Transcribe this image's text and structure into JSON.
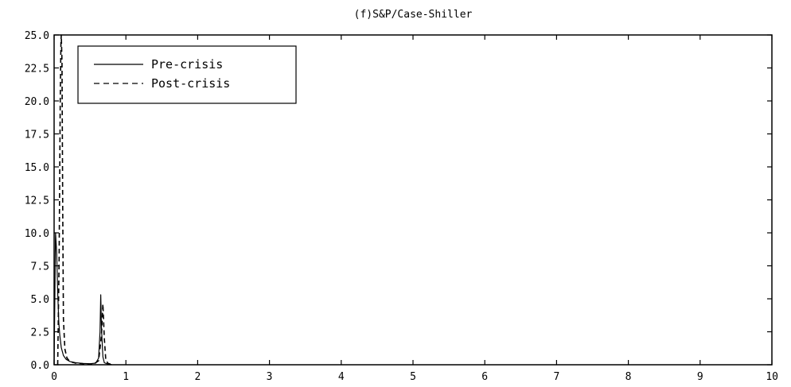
{
  "chart_data": {
    "type": "line",
    "title": "(f)S&P/Case-Shiller",
    "xlabel": "",
    "ylabel": "",
    "xlim": [
      0,
      10
    ],
    "ylim": [
      0,
      25
    ],
    "x_ticks": [
      "0",
      "1",
      "2",
      "3",
      "4",
      "5",
      "6",
      "7",
      "8",
      "9",
      "10"
    ],
    "y_ticks": [
      "0.0",
      "2.5",
      "5.0",
      "7.5",
      "10.0",
      "12.5",
      "15.0",
      "17.5",
      "20.0",
      "22.5",
      "25.0"
    ],
    "grid": false,
    "legend_position": "top-left",
    "series": [
      {
        "name": "Pre-crisis",
        "line_style": "solid",
        "color": "#000000",
        "x": [
          0.0,
          0.02,
          0.035,
          0.05,
          0.065,
          0.08,
          0.1,
          0.13,
          0.17,
          0.22,
          0.3,
          0.4,
          0.5,
          0.58,
          0.62,
          0.64,
          0.65,
          0.66,
          0.68,
          0.7,
          0.75,
          0.8
        ],
        "y": [
          0.0,
          10.0,
          8.5,
          5.5,
          3.2,
          2.2,
          1.3,
          0.7,
          0.4,
          0.25,
          0.15,
          0.1,
          0.08,
          0.12,
          0.5,
          2.5,
          5.3,
          2.8,
          0.6,
          0.15,
          0.05,
          0.02
        ]
      },
      {
        "name": "Post-crisis",
        "line_style": "dashed",
        "color": "#000000",
        "x": [
          0.05,
          0.07,
          0.085,
          0.095,
          0.1,
          0.11,
          0.12,
          0.13,
          0.15,
          0.18,
          0.22,
          0.3,
          0.45,
          0.55,
          0.62,
          0.66,
          0.68,
          0.7,
          0.72,
          0.75,
          0.8
        ],
        "y": [
          0.0,
          8.0,
          20.0,
          24.5,
          25.0,
          23.0,
          12.0,
          3.5,
          1.2,
          0.5,
          0.25,
          0.12,
          0.06,
          0.05,
          0.3,
          2.2,
          4.6,
          2.0,
          0.4,
          0.1,
          0.02
        ]
      }
    ]
  }
}
